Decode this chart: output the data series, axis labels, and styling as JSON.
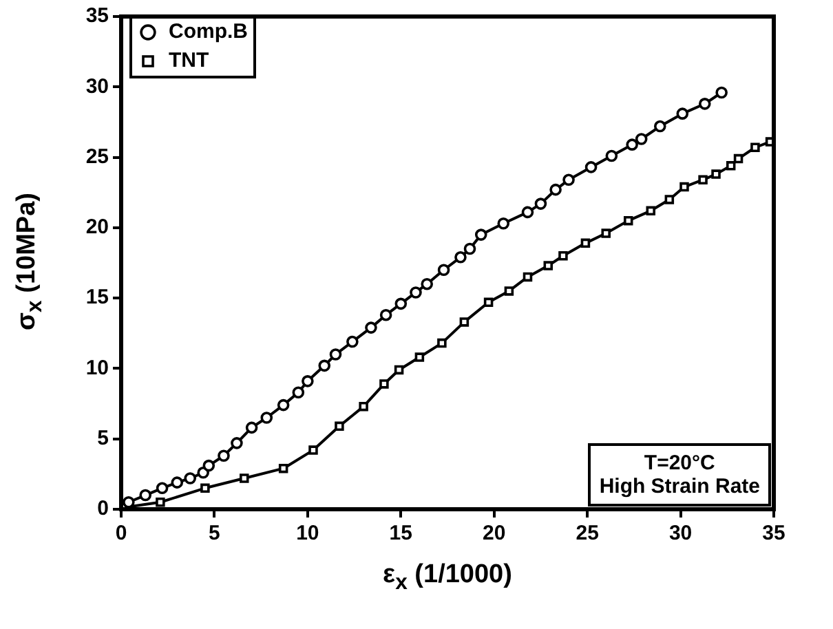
{
  "chart_data": {
    "type": "line",
    "xlabel": "ε$_{x}$ (1/1000)",
    "ylabel": "σ$_{x}$ (10MPa)",
    "xlim": [
      0,
      35
    ],
    "xticks": [
      0,
      5,
      10,
      15,
      20,
      25,
      30,
      35
    ],
    "ylim": [
      0,
      35
    ],
    "yticks": [
      0,
      5,
      10,
      15,
      20,
      25,
      30,
      35
    ],
    "grid": false,
    "legend": "top left",
    "line_style": "solid",
    "annotations": [
      "T=20°C",
      "High Strain Rate"
    ],
    "series": [
      {
        "name": "Comp.B",
        "color": "#000000",
        "marker": "circle",
        "x": [
          0,
          0.4,
          1.3,
          2.2,
          3,
          3.7,
          4.4,
          4.7,
          5.5,
          6.2,
          7,
          7.8,
          8.7,
          9.5,
          10,
          10.9,
          11.5,
          12.4,
          13.4,
          14.2,
          15,
          15.8,
          16.4,
          17.3,
          18.2,
          18.7,
          19.3,
          20.5,
          21.8,
          22.5,
          23.3,
          24,
          25.2,
          26.3,
          27.4,
          27.9,
          28.9,
          30.1,
          31.3,
          32.2
        ],
        "values": [
          0.2,
          0.5,
          1,
          1.5,
          1.9,
          2.2,
          2.6,
          3.1,
          3.8,
          4.7,
          5.8,
          6.5,
          7.4,
          8.3,
          9.1,
          10.2,
          11,
          11.9,
          12.9,
          13.8,
          14.6,
          15.4,
          16,
          17,
          17.9,
          18.5,
          19.5,
          20.3,
          21.1,
          21.7,
          22.7,
          23.4,
          24.3,
          25.1,
          25.9,
          26.3,
          27.2,
          28.1,
          28.8,
          29.6
        ]
      },
      {
        "name": "TNT",
        "color": "#000000",
        "marker": "square",
        "x": [
          0,
          2.1,
          4.5,
          6.6,
          8.7,
          10.3,
          11.7,
          13,
          14.1,
          14.9,
          16,
          17.2,
          18.4,
          19.7,
          20.8,
          21.8,
          22.9,
          23.7,
          24.9,
          26,
          27.2,
          28.4,
          29.4,
          30.2,
          31.2,
          31.9,
          32.7,
          33.1,
          34,
          34.8
        ],
        "values": [
          0.1,
          0.5,
          1.5,
          2.2,
          2.9,
          4.2,
          5.9,
          7.3,
          8.9,
          9.9,
          10.8,
          11.8,
          13.3,
          14.7,
          15.5,
          16.5,
          17.3,
          18,
          18.9,
          19.6,
          20.5,
          21.2,
          22,
          22.9,
          23.4,
          23.8,
          24.4,
          24.9,
          25.7,
          26.1
        ]
      }
    ]
  }
}
